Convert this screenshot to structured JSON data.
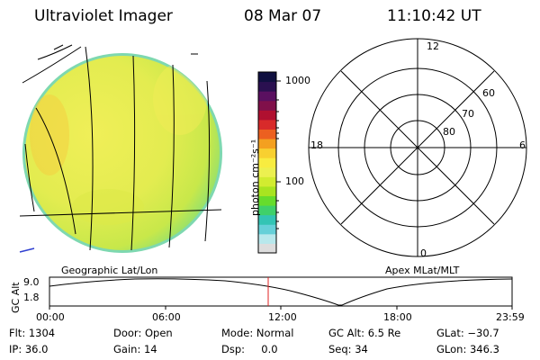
{
  "header": {
    "title": "Ultraviolet Imager",
    "date": "08 Mar 07",
    "time": "11:10:42 UT"
  },
  "colorbar": {
    "unit_label": "photon cm⁻²s⁻¹",
    "ticks": [
      "1000",
      "100"
    ],
    "colors": [
      "#dddddd",
      "#b8e8ec",
      "#66d0d8",
      "#33c4b4",
      "#3fd06a",
      "#66dc2c",
      "#a8e420",
      "#d2ec30",
      "#ecf050",
      "#f8ec40",
      "#f8d030",
      "#f4a020",
      "#ec6020",
      "#d82a2a",
      "#b01030",
      "#80104a",
      "#5a1060",
      "#2a1050",
      "#101040"
    ]
  },
  "image_panel": {
    "caption": "Geographic Lat/Lon"
  },
  "polar_plot": {
    "caption": "Apex MLat/MLT",
    "mlt_labels": {
      "top": "12",
      "left": "18",
      "right": "6",
      "bottom": "0"
    },
    "lat_labels": [
      "60",
      "70",
      "80"
    ]
  },
  "altitude_plot": {
    "ylabel": "GC Alt",
    "yticks": [
      "9.0",
      "1.8"
    ],
    "xticks": [
      "00:00",
      "06:00",
      "12:00",
      "18:00",
      "23:59"
    ]
  },
  "info": {
    "row1": {
      "flt": "Flt: 1304",
      "door": "Door: Open",
      "mode": "Mode: Normal",
      "gcalt": "GC Alt: 6.5 Re",
      "glat": "GLat: −30.7"
    },
    "row2": {
      "ip": "IP: 36.0",
      "gain": "Gain: 14",
      "dsp": "Dsp:     0.0",
      "seq": "Seq: 34",
      "glon": "GLon: 346.3"
    }
  },
  "colors": {
    "earth_fill": "#e8ee52",
    "earth_edge": "#8ee070",
    "marker": "#e02020"
  }
}
